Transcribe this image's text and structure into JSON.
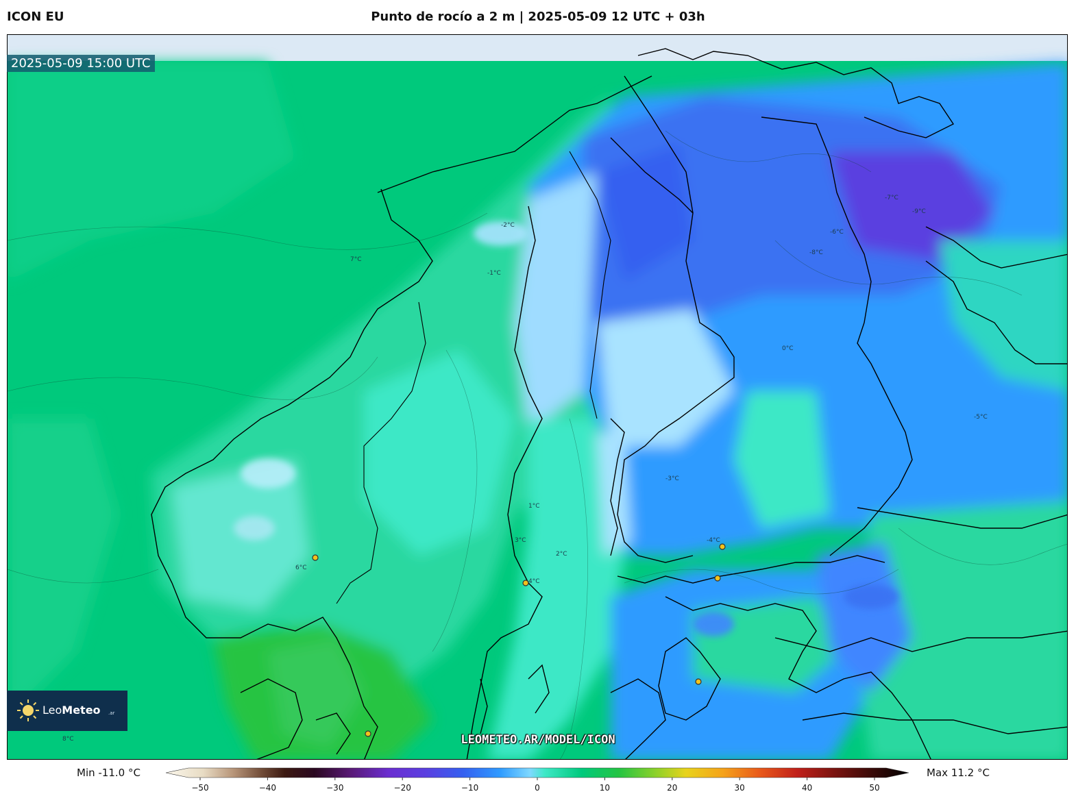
{
  "header": {
    "model": "ICON EU",
    "title": "Punto de rocío a 2 m | 2025-05-09 12 UTC + 03h"
  },
  "map": {
    "valid_time": "2025-05-09 15:00 UTC",
    "watermark": "LEOMETEO.AR/MODEL/ICON",
    "contour_labels": [
      "-9°C",
      "-8°C",
      "-7°C",
      "-6°C",
      "-5°C",
      "-4°C",
      "-3°C",
      "-2°C",
      "-1°C",
      "0°C",
      "1°C",
      "2°C",
      "3°C",
      "4°C",
      "6°C",
      "7°C",
      "8°C"
    ]
  },
  "logo": {
    "name_light": "Leo",
    "name_bold": "Meteo",
    "suffix": ".ar"
  },
  "colorbar": {
    "min_label": "Min -11.0 °C",
    "max_label": "Max 11.2 °C",
    "ticks": [
      "−50",
      "−40",
      "−30",
      "−20",
      "−10",
      "0",
      "10",
      "20",
      "30",
      "40",
      "50"
    ],
    "range": [
      -50,
      50
    ]
  },
  "colors": {
    "sea": "#00c97c",
    "land_warm": "#2bd58f",
    "land_cool": "#3ee8c6",
    "cold_1": "#7fd8ff",
    "cold_2": "#2f9bff",
    "cold_3": "#3560f0",
    "cold_4": "#5a3fe0",
    "warm_green": "#25c443",
    "coast": "#000000",
    "city_marker": "#f2c21c"
  }
}
